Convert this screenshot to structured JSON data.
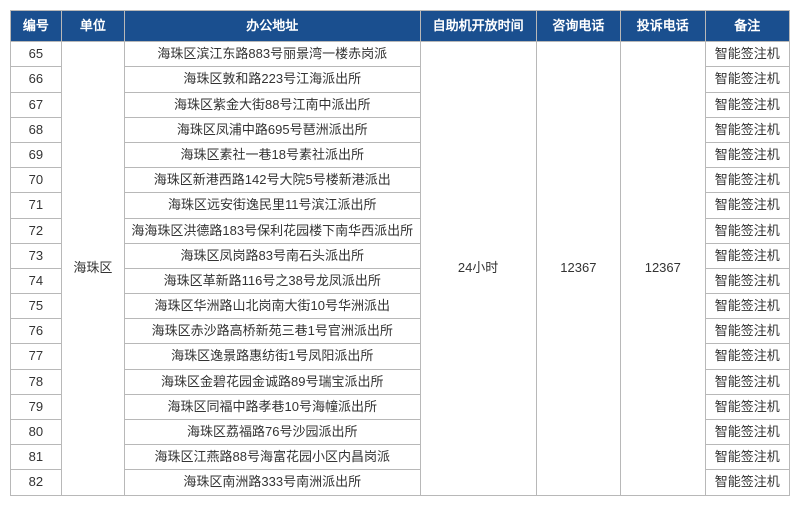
{
  "header": {
    "id": "编号",
    "unit": "单位",
    "address": "办公地址",
    "open_time": "自助机开放时间",
    "tel": "咨询电话",
    "complaint": "投诉电话",
    "note": "备注"
  },
  "unit_label": "海珠区",
  "open_time_value": "24小时",
  "tel_value": "12367",
  "complaint_value": "12367",
  "rows": [
    {
      "id": "65",
      "address": "海珠区滨江东路883号丽景湾一楼赤岗派",
      "note": "智能签注机"
    },
    {
      "id": "66",
      "address": "海珠区敦和路223号江海派出所",
      "note": "智能签注机"
    },
    {
      "id": "67",
      "address": "海珠区紫金大街88号江南中派出所",
      "note": "智能签注机"
    },
    {
      "id": "68",
      "address": "海珠区凤浦中路695号琶洲派出所",
      "note": "智能签注机"
    },
    {
      "id": "69",
      "address": "海珠区素社一巷18号素社派出所",
      "note": "智能签注机"
    },
    {
      "id": "70",
      "address": "海珠区新港西路142号大院5号楼新港派出",
      "note": "智能签注机"
    },
    {
      "id": "71",
      "address": "海珠区远安街逸民里11号滨江派出所",
      "note": "智能签注机"
    },
    {
      "id": "72",
      "address": "海海珠区洪德路183号保利花园楼下南华西派出所",
      "note": "智能签注机"
    },
    {
      "id": "73",
      "address": "海珠区凤岗路83号南石头派出所",
      "note": "智能签注机"
    },
    {
      "id": "74",
      "address": "海珠区革新路116号之38号龙凤派出所",
      "note": "智能签注机"
    },
    {
      "id": "75",
      "address": "海珠区华洲路山北岗南大街10号华洲派出",
      "note": "智能签注机"
    },
    {
      "id": "76",
      "address": "海珠区赤沙路高桥新苑三巷1号官洲派出所",
      "note": "智能签注机"
    },
    {
      "id": "77",
      "address": "海珠区逸景路惠纺街1号凤阳派出所",
      "note": "智能签注机"
    },
    {
      "id": "78",
      "address": "海珠区金碧花园金诚路89号瑞宝派出所",
      "note": "智能签注机"
    },
    {
      "id": "79",
      "address": "海珠区同福中路孝巷10号海幢派出所",
      "note": "智能签注机"
    },
    {
      "id": "80",
      "address": "海珠区荔福路76号沙园派出所",
      "note": "智能签注机"
    },
    {
      "id": "81",
      "address": "海珠区江燕路88号海富花园小区内昌岗派",
      "note": "智能签注机"
    },
    {
      "id": "82",
      "address": "海珠区南洲路333号南洲派出所",
      "note": "智能签注机"
    }
  ],
  "colors": {
    "header_bg": "#1a4f8f",
    "header_fg": "#ffffff",
    "border": "#b8b8b8",
    "text": "#333333"
  }
}
